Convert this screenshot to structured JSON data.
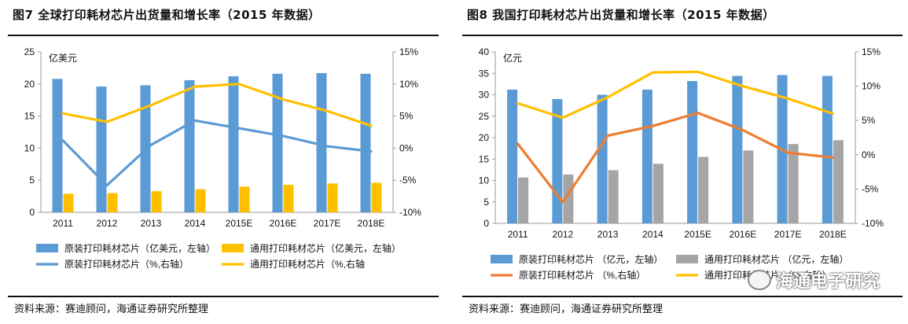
{
  "chart_data": [
    {
      "type": "bar",
      "title": "图7  全球打印耗材芯片出货量和增长率（2015 年数据）",
      "categories": [
        "2011",
        "2012",
        "2013",
        "2014",
        "2015E",
        "2016E",
        "2017E",
        "2018E"
      ],
      "unit_label": "亿美元",
      "y_left": {
        "lim": [
          0,
          25
        ],
        "ticks": [
          "0",
          "5",
          "10",
          "15",
          "20",
          "25"
        ]
      },
      "y_right": {
        "lim": [
          -10,
          15
        ],
        "ticks": [
          "-10%",
          "-5%",
          "0%",
          "5%",
          "10%",
          "15%"
        ]
      },
      "series": [
        {
          "name": "原装打印耗材芯片（亿美元，左轴）",
          "kind": "bar",
          "axis": "left",
          "color": "#5b9bd5",
          "values": [
            20.8,
            19.6,
            19.8,
            20.6,
            21.2,
            21.6,
            21.7,
            21.6
          ]
        },
        {
          "name": "通用打印耗材芯片（亿美元，左轴）",
          "kind": "bar",
          "axis": "left",
          "color": "#ffc000",
          "values": [
            2.9,
            3.0,
            3.3,
            3.6,
            4.0,
            4.3,
            4.5,
            4.6
          ]
        },
        {
          "name": "原装打印耗材芯片（%,右轴）",
          "kind": "line",
          "axis": "right",
          "color": "#5b9bd5",
          "values": [
            1.2,
            -5.8,
            0.5,
            4.3,
            3.1,
            1.9,
            0.3,
            -0.5
          ]
        },
        {
          "name": "通用打印耗材芯片（%,右轴",
          "kind": "line",
          "axis": "right",
          "color": "#ffc000",
          "values": [
            5.4,
            4.1,
            6.7,
            9.6,
            10.0,
            7.6,
            5.8,
            3.5
          ]
        }
      ],
      "source": "资料来源：赛迪顾问，海通证券研究所整理"
    },
    {
      "type": "bar",
      "title": "图8  我国打印耗材芯片出货量和增长率（2015 年数据）",
      "categories": [
        "2011",
        "2012",
        "2013",
        "2014",
        "2015E",
        "2016E",
        "2017E",
        "2018E"
      ],
      "unit_label": "亿元",
      "y_left": {
        "lim": [
          0,
          40
        ],
        "ticks": [
          "0",
          "5",
          "10",
          "15",
          "20",
          "25",
          "30",
          "35",
          "40"
        ]
      },
      "y_right": {
        "lim": [
          -10,
          15
        ],
        "ticks": [
          "-10%",
          "-5%",
          "0%",
          "5%",
          "10%",
          "15%"
        ]
      },
      "series": [
        {
          "name": "原装打印耗材芯片 （亿元，左轴）",
          "kind": "bar",
          "axis": "left",
          "color": "#5b9bd5",
          "values": [
            31.2,
            29.0,
            30.0,
            31.2,
            33.2,
            34.4,
            34.6,
            34.4
          ]
        },
        {
          "name": "通用打印耗材芯片 （亿元，左轴）",
          "kind": "bar",
          "axis": "left",
          "color": "#a5a5a5",
          "values": [
            10.7,
            11.4,
            12.4,
            13.9,
            15.5,
            17.0,
            18.5,
            19.4
          ]
        },
        {
          "name": "原装打印耗材芯片 （%,右轴）",
          "kind": "line",
          "axis": "right",
          "color": "#ed7d31",
          "values": [
            1.6,
            -6.9,
            2.8,
            4.2,
            6.1,
            3.6,
            0.3,
            -0.4
          ]
        },
        {
          "name": "通用打印耗材芯片 （%,右轴）",
          "kind": "line",
          "axis": "right",
          "color": "#ffc000",
          "values": [
            7.5,
            5.4,
            8.4,
            12.0,
            12.1,
            10.0,
            8.2,
            6.0
          ]
        }
      ],
      "source": "资料来源：赛迪顾问，海通证券研究所整理"
    }
  ],
  "watermark": "海通电子研究"
}
